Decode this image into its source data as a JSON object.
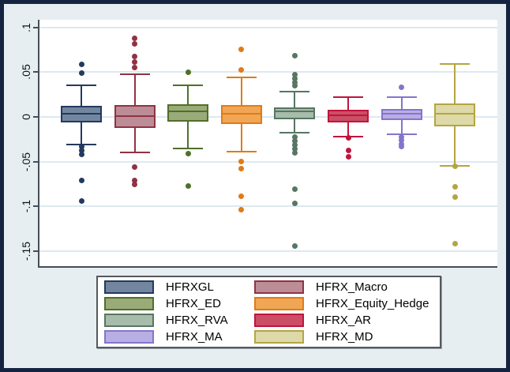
{
  "chart_data": {
    "type": "box",
    "title": "",
    "xlabel": "",
    "ylabel": "",
    "y_axis": {
      "ticks": [
        {
          "label": ".1",
          "value": 0.1
        },
        {
          "label": ".05",
          "value": 0.05
        },
        {
          "label": "0",
          "value": 0.0
        },
        {
          "label": "-.05",
          "value": -0.05
        },
        {
          "label": "-.1",
          "value": -0.1
        },
        {
          "label": "-.15",
          "value": -0.15
        }
      ],
      "range": [
        -0.17,
        0.11
      ],
      "grid": true
    },
    "legend_position": "bottom",
    "legend_columns": 2,
    "series": [
      {
        "name": "HFRXGL",
        "fill": "#72879f",
        "line": "#24395e",
        "whisker_high": 0.035,
        "q3": 0.0126,
        "median": 0.0035,
        "q1": -0.0059,
        "whisker_low": -0.0312,
        "outliers": [
          0.059,
          0.049,
          -0.0335,
          -0.0371,
          -0.0415,
          -0.071,
          -0.094
        ]
      },
      {
        "name": "HFRX_Macro",
        "fill": "#bc8d96",
        "line": "#8f3344",
        "whisker_high": 0.0474,
        "q3": 0.0135,
        "median": 0.0011,
        "q1": -0.0121,
        "whisker_low": -0.04,
        "outliers": [
          0.088,
          0.082,
          0.0673,
          0.0615,
          0.0556,
          -0.0562,
          -0.0709,
          -0.0753
        ]
      },
      {
        "name": "HFRX_ED",
        "fill": "#9aab79",
        "line": "#4f7028",
        "whisker_high": 0.035,
        "q3": 0.0144,
        "median": 0.0062,
        "q1": -0.0056,
        "whisker_low": -0.0356,
        "outliers": [
          0.0503,
          -0.0409,
          -0.0768
        ]
      },
      {
        "name": "HFRX_Equity_Hedge",
        "fill": "#f0a654",
        "line": "#e07b16",
        "whisker_high": 0.0439,
        "q3": 0.0135,
        "median": 0.0033,
        "q1": -0.0077,
        "whisker_low": -0.0386,
        "outliers": [
          0.0753,
          0.0521,
          -0.0503,
          -0.0576,
          -0.0885,
          -0.1033
        ]
      },
      {
        "name": "HFRX_RVA",
        "fill": "#a8bcab",
        "line": "#577663",
        "whisker_high": 0.0285,
        "q3": 0.0109,
        "median": 0.0059,
        "q1": -0.0024,
        "whisker_low": -0.0179,
        "outliers": [
          0.0688,
          0.0474,
          0.0431,
          0.0388,
          0.0345,
          -0.0223,
          -0.0267,
          -0.0312,
          -0.0356,
          -0.04,
          -0.0806,
          -0.0968,
          -0.1439
        ]
      },
      {
        "name": "HFRX_AR",
        "fill": "#cc4e66",
        "line": "#c0143c",
        "whisker_high": 0.0218,
        "q3": 0.0079,
        "median": 0.0015,
        "q1": -0.0059,
        "whisker_low": -0.0218,
        "outliers": [
          -0.0238,
          -0.0377,
          -0.0444
        ]
      },
      {
        "name": "HFRX_MA",
        "fill": "#b9aee4",
        "line": "#8574cd",
        "whisker_high": 0.0223,
        "q3": 0.0088,
        "median": 0.0035,
        "q1": -0.0035,
        "whisker_low": -0.0194,
        "outliers": [
          0.0335,
          -0.0223,
          -0.0262,
          -0.0301,
          -0.0327
        ]
      },
      {
        "name": "HFRX_MD",
        "fill": "#ded9a8",
        "line": "#b3a642",
        "whisker_high": 0.0594,
        "q3": 0.0153,
        "median": 0.0035,
        "q1": -0.0103,
        "whisker_low": -0.0547,
        "outliers": [
          -0.0555,
          -0.0777,
          -0.09,
          -0.1415
        ]
      }
    ],
    "legend_entries": [
      "HFRXGL",
      "HFRX_Macro",
      "HFRX_ED",
      "HFRX_Equity_Hedge",
      "HFRX_RVA",
      "HFRX_AR",
      "HFRX_MA",
      "HFRX_MD"
    ]
  },
  "colors": {
    "frame_border": "#142440",
    "canvas_background": "#e7eef1",
    "plot_background": "#ffffff",
    "gridline": "#dde9f2",
    "axis_line": "#454f58",
    "legend_border": "#55585c",
    "tick_text": "#111111"
  }
}
